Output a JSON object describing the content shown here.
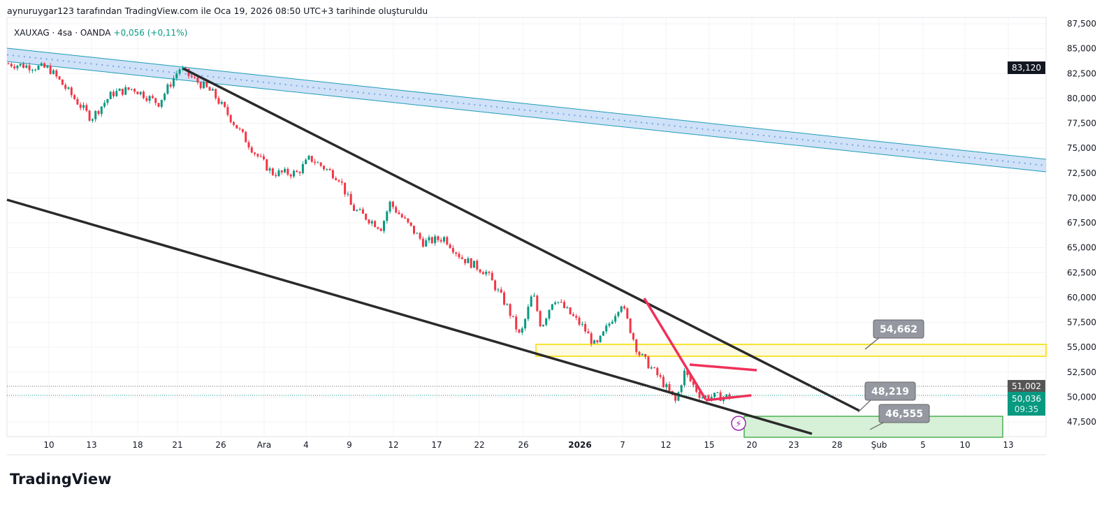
{
  "header": {
    "attribution": "aynuruygar123 tarafından TradingView.com ile Oca 19, 2026 08:50 UTC+3 tarihinde oluşturuldu"
  },
  "symbol": {
    "title": "XAUXAG · 4sa · OANDA",
    "change": "+0,056 (+0,11%)"
  },
  "logo": {
    "text": "TradingView",
    "mark": "17"
  },
  "colors": {
    "up": "#089981",
    "down": "#f23645",
    "channel": "#2196f3",
    "yellow": "#f7e433",
    "trend": "#2a2a2a",
    "red": "#f0305a",
    "green": "#4caf50"
  },
  "chart_data": {
    "type": "candlestick",
    "yticks": [
      "87,500",
      "85,000",
      "82,500",
      "80,000",
      "77,500",
      "75,000",
      "72,500",
      "70,000",
      "67,500",
      "65,000",
      "62,500",
      "60,000",
      "57,500",
      "55,000",
      "52,500",
      "50,000",
      "47,500"
    ],
    "ylim": [
      46500,
      88000
    ],
    "xticks": [
      "10",
      "13",
      "18",
      "21",
      "26",
      "Ara",
      "4",
      "9",
      "12",
      "17",
      "22",
      "26",
      "2026",
      "7",
      "12",
      "15",
      "20",
      "23",
      "28",
      "Şub",
      "5",
      "10",
      "13"
    ],
    "close_path": [
      [
        0,
        83500
      ],
      [
        1,
        83000
      ],
      [
        2,
        78000
      ],
      [
        2.5,
        80500
      ],
      [
        3,
        81000
      ],
      [
        3.6,
        79500
      ],
      [
        4.1,
        83000
      ],
      [
        4.9,
        80500
      ],
      [
        5.4,
        77500
      ],
      [
        5.9,
        74500
      ],
      [
        6.3,
        72500
      ],
      [
        6.9,
        72500
      ],
      [
        7.2,
        74000
      ],
      [
        7.9,
        72000
      ],
      [
        8.2,
        69000
      ],
      [
        8.9,
        67000
      ],
      [
        9.1,
        69500
      ],
      [
        9.9,
        65500
      ],
      [
        10.4,
        66000
      ],
      [
        10.8,
        64000
      ],
      [
        11.4,
        62500
      ],
      [
        11.9,
        59000
      ],
      [
        12.2,
        56000
      ],
      [
        12.5,
        60500
      ],
      [
        12.7,
        57000
      ],
      [
        13,
        60000
      ],
      [
        13.7,
        57000
      ],
      [
        14,
        55000
      ],
      [
        14.6,
        59500
      ],
      [
        15,
        54500
      ],
      [
        15.5,
        52000
      ],
      [
        15.9,
        49500
      ],
      [
        16.1,
        52500
      ],
      [
        16.5,
        50036
      ]
    ],
    "price_labels": {
      "last": "50,036",
      "countdown": "09:35",
      "prev": "51,002",
      "high": "83,120"
    },
    "annotations": [
      "54,662",
      "48,219",
      "46,555"
    ]
  }
}
